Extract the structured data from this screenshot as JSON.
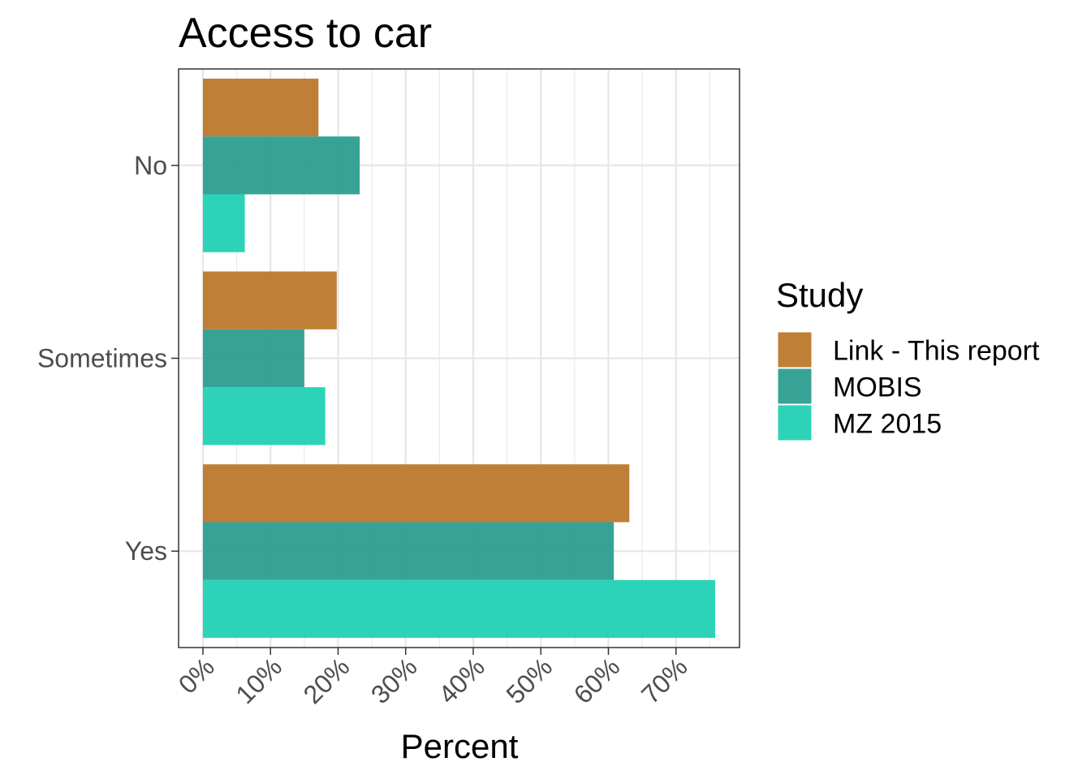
{
  "chart_data": {
    "type": "bar",
    "orientation": "horizontal",
    "title": "Access to car",
    "xlabel": "Percent",
    "ylabel": "",
    "categories": [
      "No",
      "Sometimes",
      "Yes"
    ],
    "x_ticks": [
      "0%",
      "10%",
      "20%",
      "30%",
      "40%",
      "50%",
      "60%",
      "70%"
    ],
    "xlim": [
      -3.6,
      79.4
    ],
    "grid": true,
    "legend": {
      "title": "Study",
      "position": "right"
    },
    "series": [
      {
        "name": "Link - This report",
        "color": "#bb772a",
        "values": [
          17.1,
          19.8,
          63.1
        ]
      },
      {
        "name": "MOBIS",
        "color": "#2a9d8f",
        "values": [
          23.2,
          15.0,
          60.8
        ]
      },
      {
        "name": "MZ 2015",
        "color": "#20d0b4",
        "values": [
          6.2,
          18.1,
          75.8
        ]
      }
    ]
  }
}
